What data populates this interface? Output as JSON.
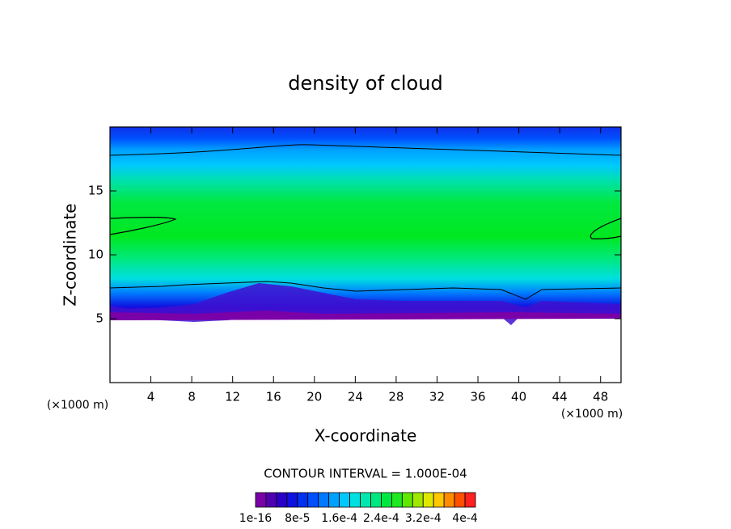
{
  "chart_data": {
    "type": "contour",
    "title": "density of cloud",
    "x_label": "X-coordinate",
    "y_label": "Z-coordinate",
    "unit_label": "(×1000 m)",
    "xlim": [
      0,
      50
    ],
    "xticks": [
      4,
      8,
      12,
      16,
      20,
      24,
      28,
      32,
      36,
      40,
      44,
      48
    ],
    "ylim": [
      0,
      20
    ],
    "yticks": [
      5,
      10,
      15
    ],
    "annotation": "CONTOUR INTERVAL = 1.000E-04",
    "colorbar": {
      "lim": [
        0,
        0.00042
      ],
      "colors": [
        "#7a00a8",
        "#5000b0",
        "#2a00c8",
        "#1010e0",
        "#0030f0",
        "#0050ff",
        "#0078ff",
        "#00a0ff",
        "#00c8ff",
        "#00e0e0",
        "#00e8b0",
        "#00e880",
        "#00e840",
        "#20e820",
        "#60e800",
        "#a0e800",
        "#e0e800",
        "#ffc800",
        "#ff8c00",
        "#ff5000",
        "#ff2020"
      ],
      "ticks": [
        {
          "value": 1e-16,
          "label": "1e-16"
        },
        {
          "value": 8e-05,
          "label": "8e-5"
        },
        {
          "value": 0.00016,
          "label": "1.6e-4"
        },
        {
          "value": 0.00024,
          "label": "2.4e-4"
        },
        {
          "value": 0.00032,
          "label": "3.2e-4"
        },
        {
          "value": 0.0004,
          "label": "4e-4"
        }
      ]
    }
  }
}
